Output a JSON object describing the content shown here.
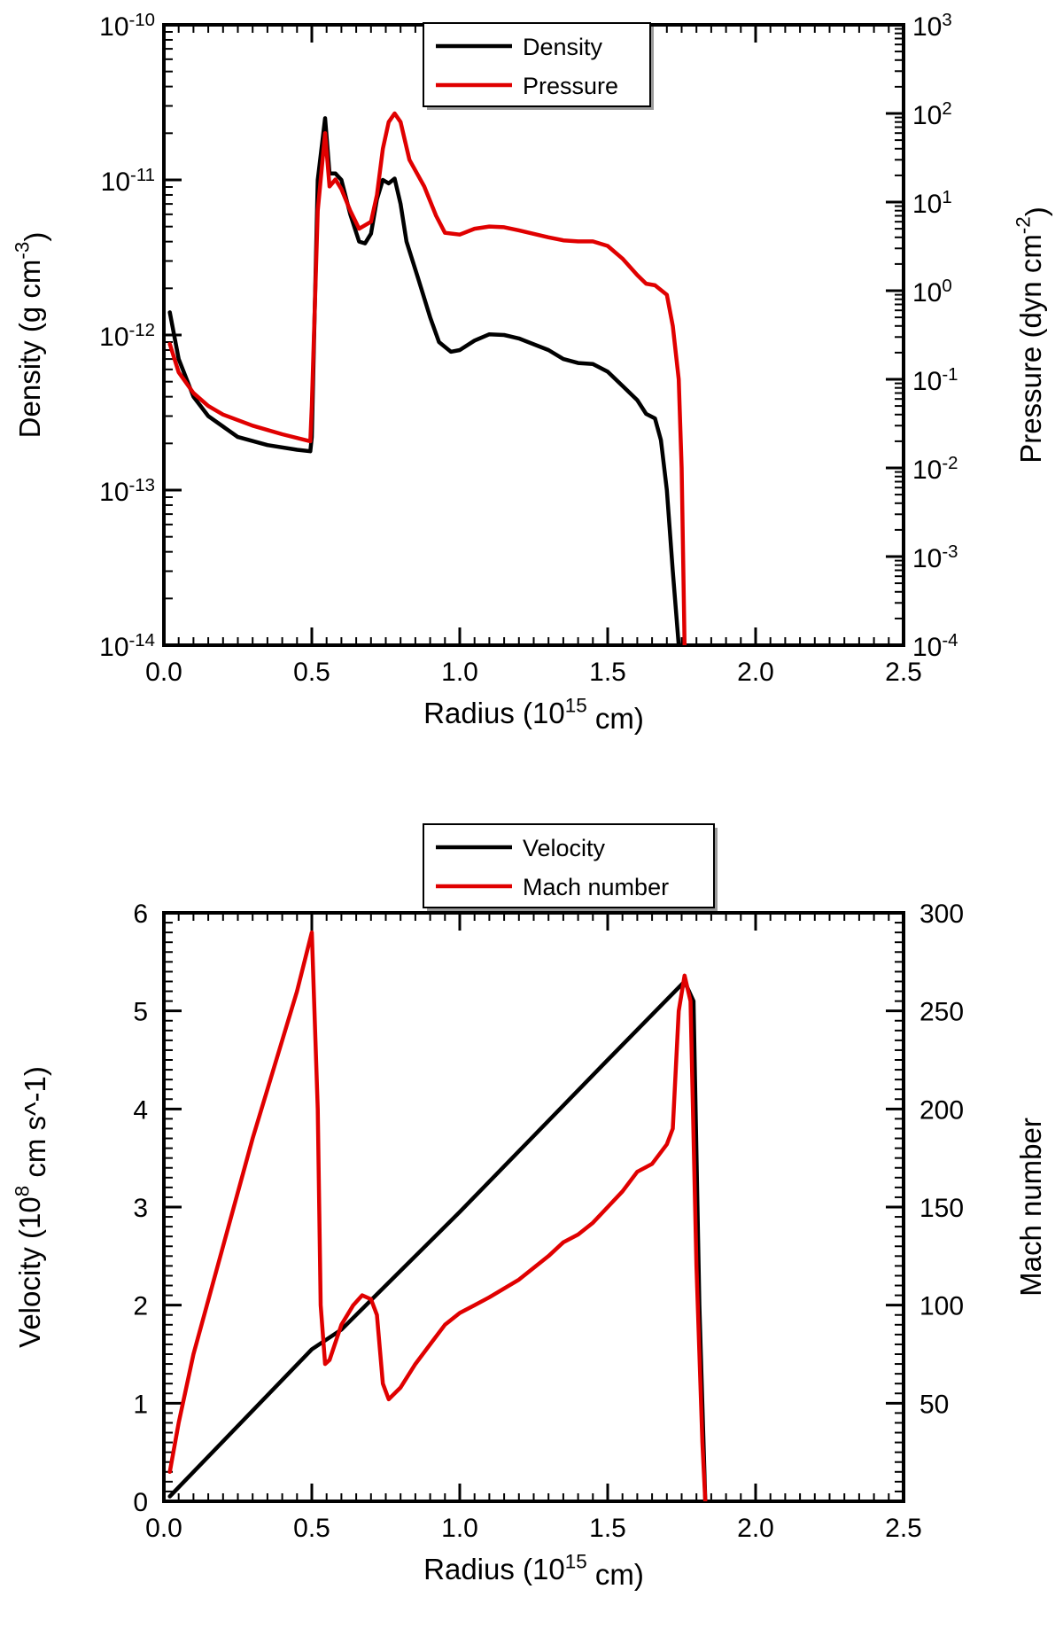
{
  "chart_data": [
    {
      "type": "line",
      "xlabel": "Radius (10^15 cm)",
      "xlim": [
        0,
        2.5
      ],
      "x_ticks": [
        "0.0",
        "0.5",
        "1.0",
        "1.5",
        "2.0",
        "2.5"
      ],
      "y_left": {
        "label": "Density (g cm^-3)",
        "scale": "log",
        "lim": [
          1e-14,
          1e-10
        ],
        "ticks": [
          "10^-14",
          "10^-13",
          "10^-12",
          "10^-11",
          "10^-10"
        ]
      },
      "y_right": {
        "label": "Pressure (dyn cm^-2)",
        "scale": "log",
        "lim": [
          0.0001,
          1000
        ],
        "ticks": [
          "10^-4",
          "10^-3",
          "10^-2",
          "10^-1",
          "10^0",
          "10^1",
          "10^2",
          "10^3"
        ]
      },
      "legend": {
        "position": "top-center",
        "entries": [
          "Density",
          "Pressure"
        ]
      },
      "series": [
        {
          "name": "Density",
          "axis": "left",
          "color": "#000000",
          "points": [
            [
              0.02,
              1.4e-12
            ],
            [
              0.05,
              7e-13
            ],
            [
              0.1,
              4e-13
            ],
            [
              0.15,
              3e-13
            ],
            [
              0.25,
              2.2e-13
            ],
            [
              0.35,
              1.95e-13
            ],
            [
              0.45,
              1.82e-13
            ],
            [
              0.495,
              1.78e-13
            ],
            [
              0.5,
              2.2e-13
            ],
            [
              0.52,
              1e-11
            ],
            [
              0.545,
              2.5e-11
            ],
            [
              0.56,
              1.1e-11
            ],
            [
              0.58,
              1.1e-11
            ],
            [
              0.6,
              1e-11
            ],
            [
              0.63,
              6e-12
            ],
            [
              0.66,
              4e-12
            ],
            [
              0.68,
              3.9e-12
            ],
            [
              0.7,
              4.5e-12
            ],
            [
              0.72,
              7.5e-12
            ],
            [
              0.74,
              1e-11
            ],
            [
              0.76,
              9.5e-12
            ],
            [
              0.78,
              1.02e-11
            ],
            [
              0.8,
              7e-12
            ],
            [
              0.82,
              4e-12
            ],
            [
              0.86,
              2.3e-12
            ],
            [
              0.9,
              1.3e-12
            ],
            [
              0.93,
              9e-13
            ],
            [
              0.97,
              7.8e-13
            ],
            [
              1.0,
              8e-13
            ],
            [
              1.05,
              9.2e-13
            ],
            [
              1.1,
              1.01e-12
            ],
            [
              1.15,
              1e-12
            ],
            [
              1.2,
              9.5e-13
            ],
            [
              1.3,
              8e-13
            ],
            [
              1.35,
              7e-13
            ],
            [
              1.4,
              6.6e-13
            ],
            [
              1.45,
              6.5e-13
            ],
            [
              1.5,
              5.8e-13
            ],
            [
              1.55,
              4.7e-13
            ],
            [
              1.6,
              3.8e-13
            ],
            [
              1.63,
              3.1e-13
            ],
            [
              1.66,
              2.9e-13
            ],
            [
              1.68,
              2.1e-13
            ],
            [
              1.7,
              1e-13
            ],
            [
              1.72,
              3e-14
            ],
            [
              1.74,
              1e-14
            ]
          ]
        },
        {
          "name": "Pressure",
          "axis": "right",
          "color": "#e00000",
          "points": [
            [
              0.02,
              0.25
            ],
            [
              0.05,
              0.12
            ],
            [
              0.1,
              0.07
            ],
            [
              0.15,
              0.05
            ],
            [
              0.2,
              0.04
            ],
            [
              0.3,
              0.03
            ],
            [
              0.4,
              0.024
            ],
            [
              0.495,
              0.02
            ],
            [
              0.5,
              0.05
            ],
            [
              0.52,
              8
            ],
            [
              0.545,
              60
            ],
            [
              0.56,
              15
            ],
            [
              0.58,
              18
            ],
            [
              0.6,
              14
            ],
            [
              0.63,
              8
            ],
            [
              0.66,
              5
            ],
            [
              0.7,
              6
            ],
            [
              0.72,
              12
            ],
            [
              0.74,
              40
            ],
            [
              0.76,
              80
            ],
            [
              0.78,
              100
            ],
            [
              0.8,
              80
            ],
            [
              0.83,
              30
            ],
            [
              0.88,
              15
            ],
            [
              0.92,
              7
            ],
            [
              0.95,
              4.5
            ],
            [
              1.0,
              4.3
            ],
            [
              1.05,
              5
            ],
            [
              1.1,
              5.3
            ],
            [
              1.15,
              5.2
            ],
            [
              1.2,
              4.8
            ],
            [
              1.3,
              4
            ],
            [
              1.35,
              3.7
            ],
            [
              1.4,
              3.6
            ],
            [
              1.45,
              3.6
            ],
            [
              1.5,
              3.2
            ],
            [
              1.55,
              2.3
            ],
            [
              1.6,
              1.5
            ],
            [
              1.63,
              1.2
            ],
            [
              1.66,
              1.15
            ],
            [
              1.7,
              0.9
            ],
            [
              1.72,
              0.4
            ],
            [
              1.74,
              0.1
            ],
            [
              1.75,
              0.01
            ],
            [
              1.76,
              0.0001
            ]
          ]
        }
      ]
    },
    {
      "type": "line",
      "xlabel": "Radius (10^15 cm)",
      "xlim": [
        0,
        2.5
      ],
      "x_ticks": [
        "0.0",
        "0.5",
        "1.0",
        "1.5",
        "2.0",
        "2.5"
      ],
      "y_left": {
        "label": "Velocity (10^8 cm s^-1)",
        "scale": "linear",
        "lim": [
          0,
          6
        ],
        "ticks": [
          "0",
          "1",
          "2",
          "3",
          "4",
          "5",
          "6"
        ]
      },
      "y_right": {
        "label": "Mach number",
        "scale": "linear",
        "lim": [
          0,
          300
        ],
        "ticks": [
          "50",
          "100",
          "150",
          "200",
          "250",
          "300"
        ]
      },
      "legend": {
        "position": "top-center",
        "entries": [
          "Velocity",
          "Mach number"
        ]
      },
      "series": [
        {
          "name": "Velocity",
          "axis": "left",
          "color": "#000000",
          "points": [
            [
              0.02,
              0.05
            ],
            [
              0.5,
              1.55
            ],
            [
              0.6,
              1.75
            ],
            [
              0.75,
              2.2
            ],
            [
              1.0,
              2.95
            ],
            [
              1.5,
              4.5
            ],
            [
              1.76,
              5.3
            ],
            [
              1.79,
              5.1
            ],
            [
              1.81,
              2.0
            ],
            [
              1.83,
              0.0
            ]
          ]
        },
        {
          "name": "Mach number",
          "axis": "right",
          "color": "#e00000",
          "points": [
            [
              0.02,
              15
            ],
            [
              0.05,
              40
            ],
            [
              0.1,
              75
            ],
            [
              0.2,
              130
            ],
            [
              0.3,
              185
            ],
            [
              0.4,
              235
            ],
            [
              0.45,
              260
            ],
            [
              0.5,
              290
            ],
            [
              0.52,
              200
            ],
            [
              0.53,
              100
            ],
            [
              0.545,
              70
            ],
            [
              0.56,
              72
            ],
            [
              0.6,
              90
            ],
            [
              0.64,
              100
            ],
            [
              0.67,
              105
            ],
            [
              0.7,
              103
            ],
            [
              0.72,
              95
            ],
            [
              0.74,
              60
            ],
            [
              0.76,
              52
            ],
            [
              0.8,
              58
            ],
            [
              0.85,
              70
            ],
            [
              0.9,
              80
            ],
            [
              0.95,
              90
            ],
            [
              1.0,
              96
            ],
            [
              1.05,
              100
            ],
            [
              1.1,
              104
            ],
            [
              1.2,
              113
            ],
            [
              1.3,
              125
            ],
            [
              1.35,
              132
            ],
            [
              1.4,
              136
            ],
            [
              1.45,
              142
            ],
            [
              1.5,
              150
            ],
            [
              1.55,
              158
            ],
            [
              1.6,
              168
            ],
            [
              1.65,
              172
            ],
            [
              1.7,
              182
            ],
            [
              1.72,
              190
            ],
            [
              1.74,
              250
            ],
            [
              1.76,
              268
            ],
            [
              1.78,
              255
            ],
            [
              1.8,
              120
            ],
            [
              1.82,
              30
            ],
            [
              1.83,
              0
            ]
          ]
        }
      ]
    }
  ]
}
